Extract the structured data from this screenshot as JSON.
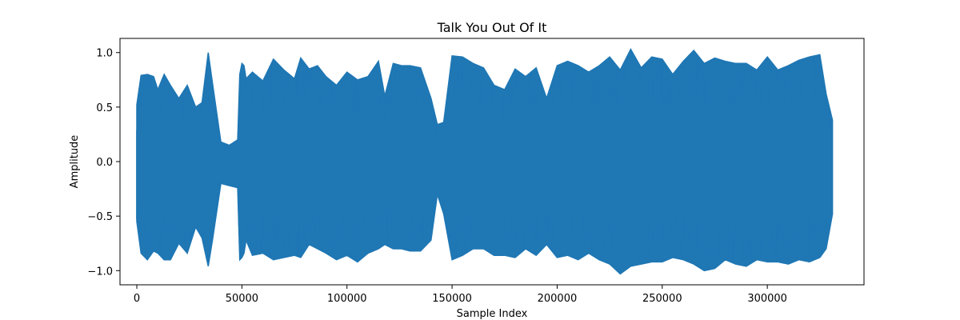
{
  "chart_data": {
    "type": "line",
    "title": "Talk You Out Of It",
    "xlabel": "Sample Index",
    "ylabel": "Amplitude",
    "xlim": [
      -8000,
      346000
    ],
    "ylim": [
      -1.13,
      1.13
    ],
    "x_ticks": [
      0,
      50000,
      100000,
      150000,
      200000,
      250000,
      300000
    ],
    "x_tick_labels": [
      "0",
      "50000",
      "100000",
      "150000",
      "200000",
      "250000",
      "300000"
    ],
    "y_ticks": [
      -1.0,
      -0.5,
      0.0,
      0.5,
      1.0
    ],
    "y_tick_labels": [
      "−1.0",
      "−0.5",
      "0.0",
      "0.5",
      "1.0"
    ],
    "grid": false,
    "legend": "none",
    "series_color": "#1f77b4",
    "x_total": 331000,
    "envelope": {
      "x": [
        0,
        2000,
        5000,
        8000,
        10000,
        13000,
        16000,
        20000,
        24000,
        28000,
        31000,
        34000,
        36000,
        40000,
        44000,
        48000,
        49000,
        50000,
        51000,
        52000,
        55000,
        60000,
        65000,
        70000,
        75000,
        78000,
        82000,
        86000,
        90000,
        95000,
        100000,
        105000,
        110000,
        115000,
        118000,
        122000,
        126000,
        130000,
        135000,
        140000,
        143000,
        146000,
        150000,
        155000,
        160000,
        165000,
        170000,
        175000,
        180000,
        185000,
        190000,
        195000,
        200000,
        205000,
        210000,
        215000,
        220000,
        225000,
        230000,
        235000,
        240000,
        245000,
        250000,
        255000,
        260000,
        265000,
        270000,
        275000,
        280000,
        285000,
        290000,
        295000,
        300000,
        305000,
        310000,
        315000,
        320000,
        325000,
        328000,
        331000
      ],
      "upper": [
        0.52,
        0.79,
        0.8,
        0.78,
        0.66,
        0.8,
        0.7,
        0.58,
        0.7,
        0.5,
        0.54,
        1.0,
        0.72,
        0.18,
        0.15,
        0.2,
        0.8,
        0.9,
        0.88,
        0.76,
        0.82,
        0.74,
        0.94,
        0.84,
        0.76,
        0.95,
        0.85,
        0.88,
        0.78,
        0.7,
        0.82,
        0.75,
        0.78,
        0.92,
        0.6,
        0.9,
        0.88,
        0.88,
        0.86,
        0.58,
        0.34,
        0.36,
        0.97,
        0.96,
        0.9,
        0.86,
        0.7,
        0.66,
        0.85,
        0.78,
        0.86,
        0.58,
        0.88,
        0.92,
        0.88,
        0.82,
        0.88,
        0.96,
        0.84,
        1.03,
        0.86,
        0.96,
        0.94,
        0.8,
        0.92,
        1.02,
        0.9,
        0.95,
        0.92,
        0.9,
        0.9,
        0.84,
        0.96,
        0.84,
        0.88,
        0.93,
        0.96,
        0.98,
        0.62,
        0.38
      ],
      "lower": [
        -0.55,
        -0.84,
        -0.9,
        -0.82,
        -0.84,
        -0.9,
        -0.9,
        -0.75,
        -0.84,
        -0.6,
        -0.7,
        -0.96,
        -0.72,
        -0.2,
        -0.22,
        -0.24,
        -0.9,
        -0.88,
        -0.84,
        -0.72,
        -0.86,
        -0.84,
        -0.9,
        -0.88,
        -0.86,
        -0.88,
        -0.76,
        -0.8,
        -0.84,
        -0.9,
        -0.86,
        -0.92,
        -0.84,
        -0.8,
        -0.76,
        -0.8,
        -0.8,
        -0.82,
        -0.82,
        -0.72,
        -0.3,
        -0.48,
        -0.9,
        -0.86,
        -0.8,
        -0.8,
        -0.86,
        -0.86,
        -0.88,
        -0.8,
        -0.86,
        -0.76,
        -0.88,
        -0.86,
        -0.9,
        -0.84,
        -0.9,
        -0.94,
        -1.03,
        -0.96,
        -0.94,
        -0.92,
        -0.92,
        -0.88,
        -0.9,
        -0.94,
        -1.0,
        -0.98,
        -0.9,
        -0.94,
        -0.96,
        -0.9,
        -0.92,
        -0.92,
        -0.94,
        -0.9,
        -0.92,
        -0.88,
        -0.8,
        -0.48
      ]
    }
  }
}
